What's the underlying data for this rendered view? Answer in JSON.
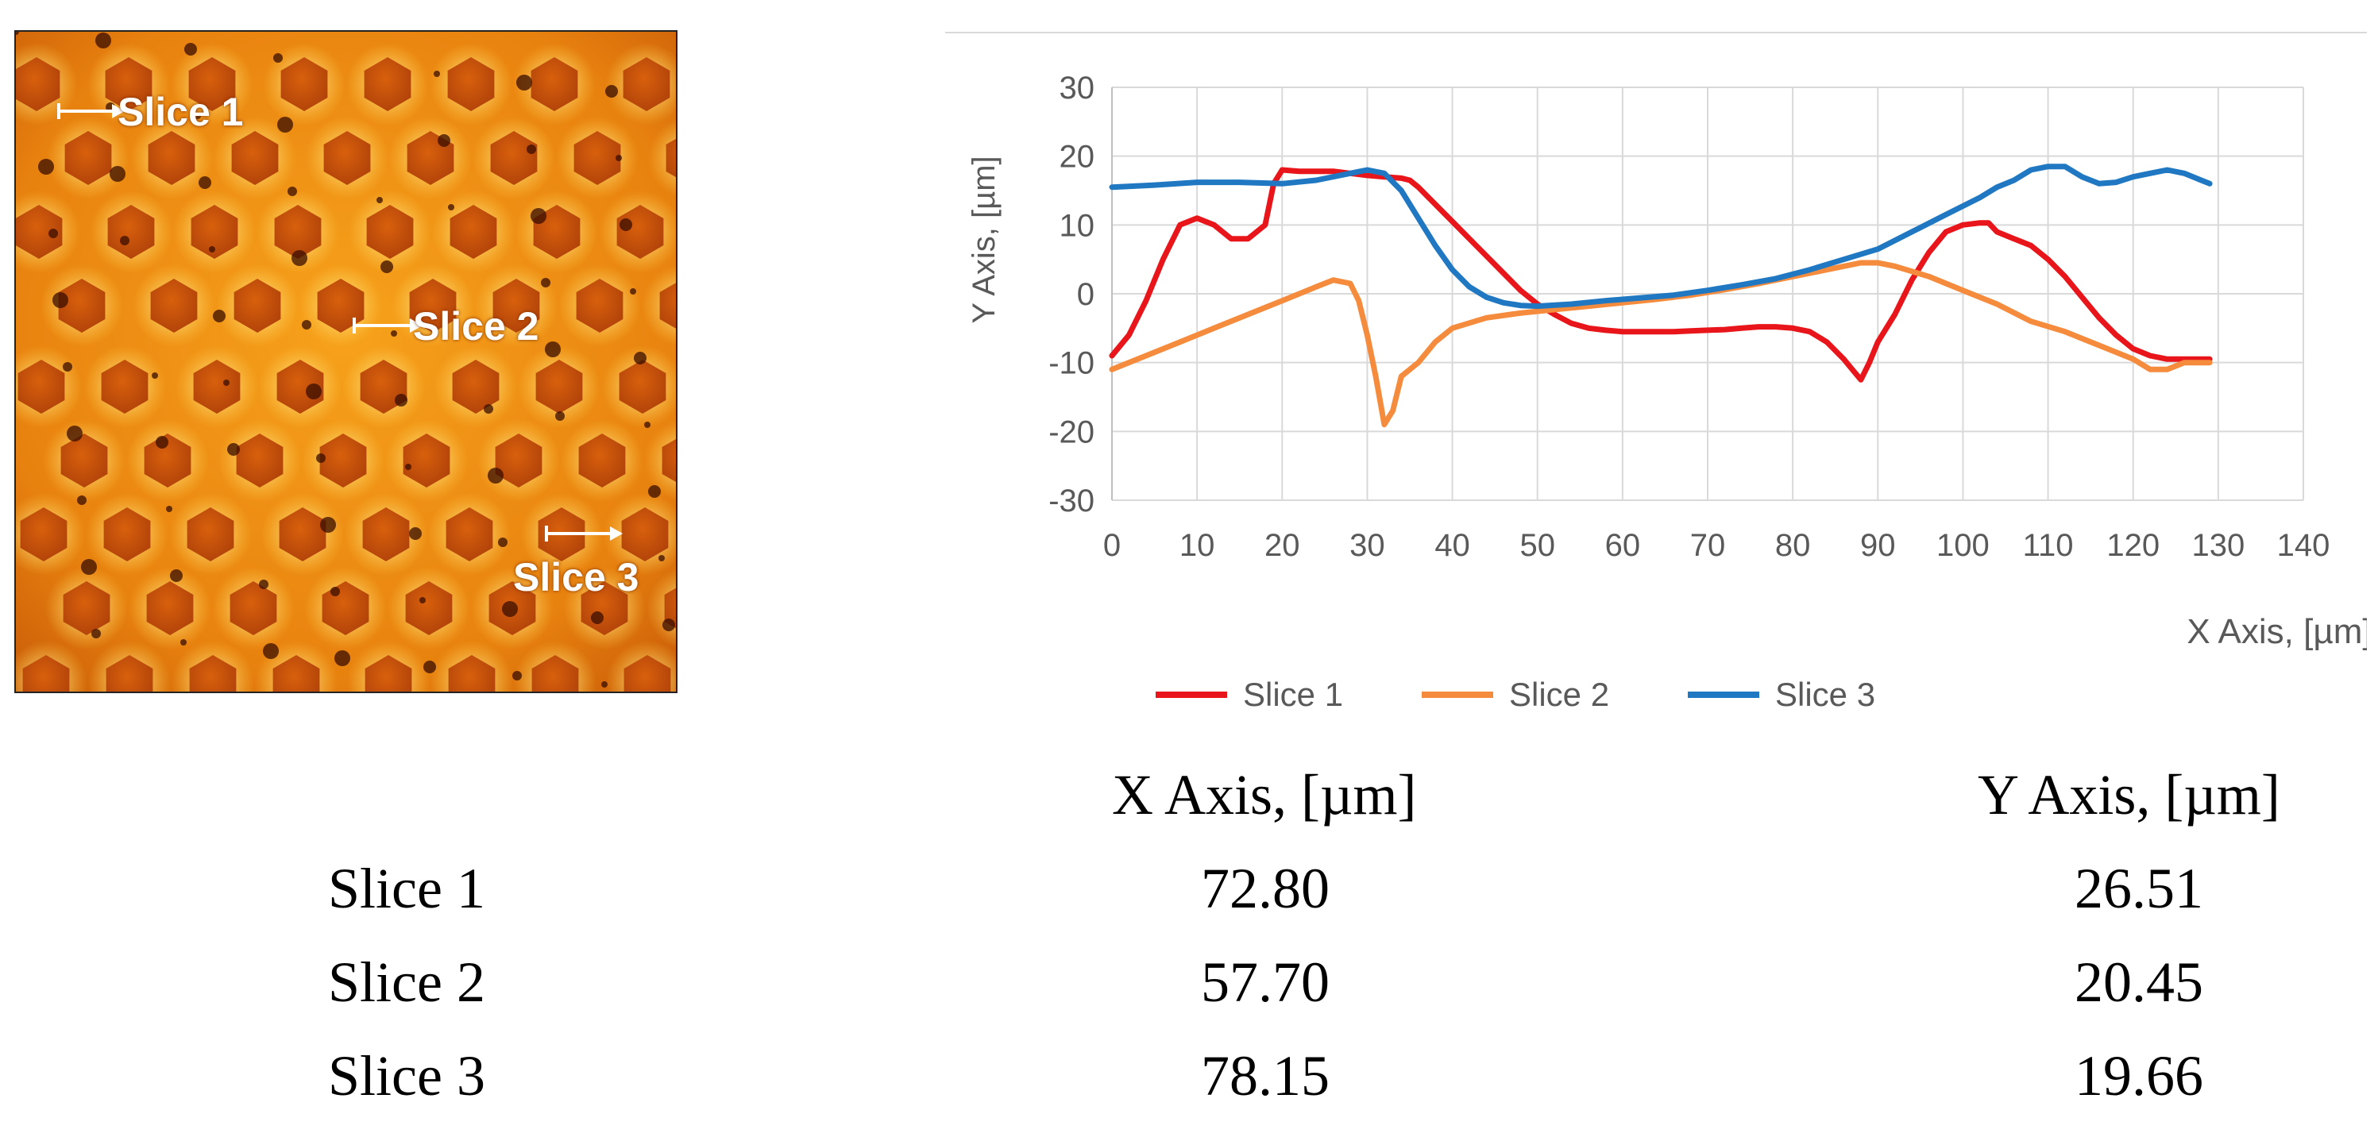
{
  "micrograph": {
    "slice_labels": [
      "Slice 1",
      "Slice 2",
      "Slice 3"
    ]
  },
  "chart_data": {
    "type": "line",
    "xlabel": "X Axis, [µm]",
    "ylabel": "Y Axis,  [µm]",
    "xlim": [
      0,
      140
    ],
    "ylim": [
      -30,
      30
    ],
    "xticks": [
      "0",
      "10",
      "20",
      "30",
      "40",
      "50",
      "60",
      "70",
      "80",
      "90",
      "100",
      "110",
      "120",
      "130",
      "140"
    ],
    "yticks": [
      "30",
      "20",
      "10",
      "0",
      "-10",
      "-20",
      "-30"
    ],
    "grid": true,
    "legend_position": "bottom",
    "series": [
      {
        "name": "Slice 1",
        "color": "#e8161b",
        "x": [
          0,
          2,
          4,
          6,
          8,
          10,
          12,
          14,
          16,
          18,
          19,
          20,
          22,
          24,
          26,
          28,
          30,
          32,
          34,
          35,
          36,
          38,
          40,
          42,
          44,
          46,
          48,
          50,
          52,
          54,
          56,
          58,
          60,
          62,
          64,
          66,
          68,
          70,
          72,
          74,
          76,
          78,
          80,
          82,
          84,
          86,
          87,
          88,
          89,
          90,
          92,
          94,
          96,
          98,
          100,
          102,
          103,
          104,
          106,
          108,
          110,
          112,
          114,
          116,
          118,
          120,
          122,
          124,
          126,
          128,
          129
        ],
        "y": [
          -9,
          -6,
          -1,
          5,
          10,
          11,
          10,
          8,
          8,
          10,
          16,
          18,
          17.8,
          17.8,
          17.8,
          17.5,
          17.2,
          17,
          16.8,
          16.5,
          15.5,
          13,
          10.5,
          8,
          5.5,
          3,
          0.5,
          -1.5,
          -3,
          -4.3,
          -5,
          -5.3,
          -5.5,
          -5.5,
          -5.5,
          -5.5,
          -5.4,
          -5.3,
          -5.2,
          -5,
          -4.8,
          -4.8,
          -5,
          -5.5,
          -7,
          -9.5,
          -11,
          -12.5,
          -10,
          -7,
          -3,
          2,
          6,
          9,
          10,
          10.3,
          10.3,
          9,
          8,
          7,
          5,
          2.5,
          -0.5,
          -3.5,
          -6,
          -8,
          -9,
          -9.5,
          -9.5,
          -9.5,
          -9.5
        ]
      },
      {
        "name": "Slice 2",
        "color": "#f58b3c",
        "x": [
          0,
          4,
          8,
          12,
          16,
          20,
          24,
          26,
          28,
          29,
          30,
          31,
          32,
          33,
          34,
          36,
          38,
          40,
          44,
          48,
          52,
          56,
          60,
          64,
          68,
          72,
          76,
          80,
          84,
          88,
          90,
          92,
          96,
          100,
          104,
          108,
          112,
          116,
          120,
          122,
          124,
          126,
          128,
          129
        ],
        "y": [
          -11,
          -9,
          -7,
          -5,
          -3,
          -1,
          1,
          2,
          1.5,
          -1,
          -6,
          -12,
          -19,
          -17,
          -12,
          -10,
          -7,
          -5,
          -3.5,
          -2.8,
          -2.3,
          -1.8,
          -1.3,
          -0.8,
          -0.2,
          0.6,
          1.5,
          2.5,
          3.5,
          4.5,
          4.5,
          4,
          2.5,
          0.5,
          -1.5,
          -4,
          -5.5,
          -7.5,
          -9.5,
          -11,
          -11,
          -10,
          -10,
          -10
        ]
      },
      {
        "name": "Slice 3",
        "color": "#1f78c1",
        "x": [
          0,
          5,
          10,
          15,
          20,
          24,
          28,
          30,
          32,
          34,
          36,
          38,
          40,
          42,
          44,
          46,
          48,
          50,
          54,
          58,
          62,
          66,
          70,
          74,
          78,
          82,
          86,
          90,
          94,
          98,
          102,
          104,
          106,
          108,
          110,
          112,
          114,
          116,
          118,
          120,
          122,
          124,
          126,
          128,
          129
        ],
        "y": [
          15.5,
          15.8,
          16.2,
          16.2,
          16,
          16.5,
          17.5,
          18,
          17.5,
          15,
          11,
          7,
          3.5,
          1,
          -0.5,
          -1.3,
          -1.7,
          -1.8,
          -1.5,
          -1,
          -0.6,
          -0.2,
          0.5,
          1.3,
          2.2,
          3.5,
          5,
          6.5,
          9,
          11.5,
          14,
          15.5,
          16.5,
          18,
          18.5,
          18.5,
          17,
          16,
          16.2,
          17,
          17.5,
          18,
          17.5,
          16.5,
          16
        ]
      }
    ]
  },
  "table": {
    "headers": [
      "X Axis, [µm]",
      "Y Axis, [µm]"
    ],
    "rows": [
      {
        "label": "Slice 1",
        "x": "72.80",
        "y": "26.51"
      },
      {
        "label": "Slice 2",
        "x": "57.70",
        "y": "20.45"
      },
      {
        "label": "Slice 3",
        "x": "78.15",
        "y": "19.66"
      }
    ]
  }
}
